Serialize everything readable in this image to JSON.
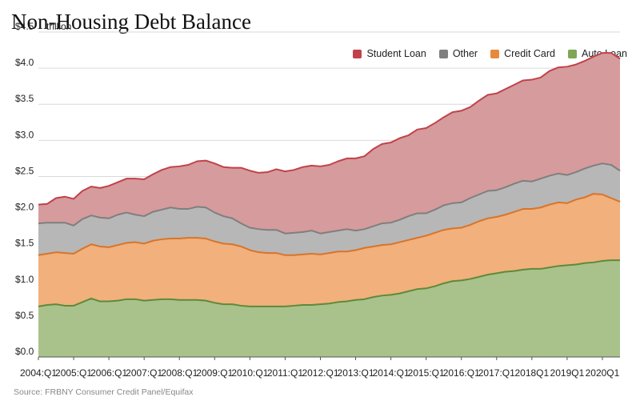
{
  "chart_data": {
    "type": "area",
    "stacked": true,
    "title": "Non-Housing Debt Balance",
    "ylabel": "trillion",
    "ylim": [
      0,
      4.5
    ],
    "y_ticks": [
      "$0.0",
      "$0.5",
      "$1.0",
      "$1.5",
      "$2.0",
      "$2.5",
      "$3.0",
      "$3.5",
      "$4.0",
      "$4.5"
    ],
    "y_tick_values": [
      0,
      0.5,
      1.0,
      1.5,
      2.0,
      2.5,
      3.0,
      3.5,
      4.0,
      4.5
    ],
    "x_start_year": 2004,
    "x_tick_labels": [
      "2004:Q1",
      "2005:Q1",
      "2006:Q1",
      "2007:Q1",
      "2008:Q1",
      "2009:Q1",
      "2010:Q1",
      "2011:Q1",
      "2012:Q1",
      "2013:Q1",
      "2014:Q1",
      "2015:Q1",
      "2016:Q1",
      "2017:Q1",
      "2018Q1",
      "2019Q1",
      "2020Q1"
    ],
    "x_tick_index": [
      0,
      4,
      8,
      12,
      16,
      20,
      24,
      28,
      32,
      36,
      40,
      44,
      48,
      52,
      56,
      60,
      64
    ],
    "legend_position": "top-right",
    "series_order_bottom_to_top": [
      "Auto Loan",
      "Credit Card",
      "Other",
      "Student Loan"
    ],
    "series": [
      {
        "name": "Auto Loan",
        "color": "#a9c28b",
        "line_color": "#5e8a3a",
        "cumulative": [
          0.7,
          0.72,
          0.73,
          0.71,
          0.71,
          0.76,
          0.81,
          0.77,
          0.77,
          0.78,
          0.8,
          0.8,
          0.78,
          0.79,
          0.8,
          0.8,
          0.79,
          0.79,
          0.79,
          0.78,
          0.75,
          0.73,
          0.73,
          0.71,
          0.7,
          0.7,
          0.7,
          0.7,
          0.7,
          0.71,
          0.72,
          0.72,
          0.73,
          0.74,
          0.76,
          0.77,
          0.79,
          0.8,
          0.83,
          0.85,
          0.86,
          0.88,
          0.91,
          0.94,
          0.95,
          0.98,
          1.02,
          1.05,
          1.06,
          1.08,
          1.11,
          1.14,
          1.16,
          1.18,
          1.19,
          1.21,
          1.22,
          1.22,
          1.24,
          1.26,
          1.27,
          1.28,
          1.3,
          1.31,
          1.33,
          1.34,
          1.34
        ]
      },
      {
        "name": "Credit Card",
        "color": "#f1b07c",
        "line_color": "#d9742a",
        "cumulative": [
          1.41,
          1.43,
          1.45,
          1.44,
          1.43,
          1.5,
          1.56,
          1.53,
          1.52,
          1.55,
          1.58,
          1.59,
          1.57,
          1.61,
          1.63,
          1.64,
          1.64,
          1.65,
          1.65,
          1.64,
          1.6,
          1.57,
          1.56,
          1.53,
          1.48,
          1.45,
          1.44,
          1.44,
          1.41,
          1.41,
          1.42,
          1.43,
          1.42,
          1.44,
          1.46,
          1.46,
          1.48,
          1.51,
          1.53,
          1.55,
          1.56,
          1.59,
          1.62,
          1.65,
          1.68,
          1.72,
          1.76,
          1.78,
          1.79,
          1.83,
          1.88,
          1.92,
          1.94,
          1.97,
          2.01,
          2.05,
          2.05,
          2.07,
          2.11,
          2.14,
          2.13,
          2.18,
          2.21,
          2.26,
          2.25,
          2.2,
          2.15
        ]
      },
      {
        "name": "Other",
        "color": "#b7b7b7",
        "line_color": "#7f7f7f",
        "cumulative": [
          1.85,
          1.86,
          1.86,
          1.86,
          1.82,
          1.91,
          1.96,
          1.93,
          1.92,
          1.97,
          2.0,
          1.97,
          1.95,
          2.01,
          2.04,
          2.07,
          2.05,
          2.05,
          2.08,
          2.07,
          2.0,
          1.95,
          1.92,
          1.85,
          1.79,
          1.77,
          1.76,
          1.76,
          1.71,
          1.72,
          1.73,
          1.75,
          1.71,
          1.73,
          1.75,
          1.77,
          1.75,
          1.77,
          1.81,
          1.85,
          1.86,
          1.9,
          1.95,
          1.99,
          1.99,
          2.04,
          2.1,
          2.13,
          2.14,
          2.2,
          2.25,
          2.3,
          2.31,
          2.35,
          2.4,
          2.44,
          2.43,
          2.47,
          2.51,
          2.54,
          2.52,
          2.56,
          2.61,
          2.65,
          2.68,
          2.66,
          2.58
        ]
      },
      {
        "name": "Student Loan",
        "color": "#d69b9c",
        "line_color": "#c1424a",
        "cumulative": [
          2.11,
          2.12,
          2.2,
          2.22,
          2.19,
          2.3,
          2.36,
          2.34,
          2.37,
          2.42,
          2.47,
          2.47,
          2.46,
          2.53,
          2.59,
          2.63,
          2.64,
          2.66,
          2.71,
          2.72,
          2.68,
          2.63,
          2.62,
          2.62,
          2.58,
          2.55,
          2.56,
          2.6,
          2.57,
          2.59,
          2.63,
          2.65,
          2.64,
          2.66,
          2.71,
          2.75,
          2.75,
          2.78,
          2.88,
          2.95,
          2.97,
          3.03,
          3.07,
          3.15,
          3.17,
          3.24,
          3.32,
          3.39,
          3.41,
          3.46,
          3.55,
          3.63,
          3.65,
          3.71,
          3.77,
          3.83,
          3.84,
          3.87,
          3.96,
          4.01,
          4.02,
          4.05,
          4.1,
          4.16,
          4.21,
          4.21,
          4.13
        ]
      }
    ],
    "legend": [
      {
        "name": "Student Loan",
        "color": "#c1424a"
      },
      {
        "name": "Other",
        "color": "#7f7f7f"
      },
      {
        "name": "Credit Card",
        "color": "#e58a3c"
      },
      {
        "name": "Auto Loan",
        "color": "#7ea655"
      }
    ]
  },
  "source": "Source: FRBNY Consumer Credit Panel/Equifax"
}
